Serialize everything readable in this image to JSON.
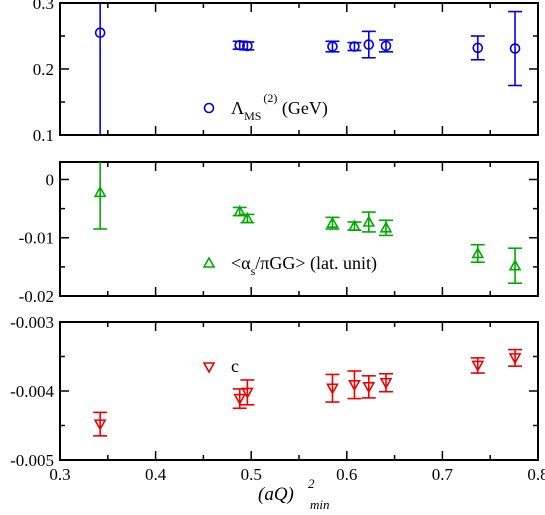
{
  "figure": {
    "xlabel_main": "(aQ)",
    "xlabel_sup": "2",
    "xlabel_sub": "min"
  },
  "chart_data": [
    {
      "type": "scatter",
      "panel": "top",
      "xlim": [
        0.3,
        0.8
      ],
      "ylim": [
        0.1,
        0.3
      ],
      "yticks": [
        0.1,
        0.2,
        0.3
      ],
      "ytick_labels": [
        "0.1",
        "0.2",
        "0.3"
      ],
      "color": "#0000ee",
      "marker": "circle",
      "legend": {
        "main": "Λ",
        "sub": "MS",
        "sup": "(2)",
        "tail": " (GeV)"
      },
      "series": [
        {
          "name": "Λ_MS^(2) (GeV)",
          "points": [
            {
              "x": 0.342,
              "y": 0.255,
              "err": 0.16
            },
            {
              "x": 0.488,
              "y": 0.236,
              "err": 0.006
            },
            {
              "x": 0.496,
              "y": 0.235,
              "err": 0.006
            },
            {
              "x": 0.585,
              "y": 0.234,
              "err": 0.008
            },
            {
              "x": 0.608,
              "y": 0.234,
              "err": 0.006
            },
            {
              "x": 0.623,
              "y": 0.237,
              "err": 0.02
            },
            {
              "x": 0.641,
              "y": 0.235,
              "err": 0.009
            },
            {
              "x": 0.737,
              "y": 0.232,
              "err": 0.018
            },
            {
              "x": 0.776,
              "y": 0.231,
              "err": 0.056
            }
          ]
        }
      ]
    },
    {
      "type": "scatter",
      "panel": "middle",
      "xlim": [
        0.3,
        0.8
      ],
      "ylim": [
        -0.02,
        0.003
      ],
      "yticks": [
        -0.02,
        -0.01,
        0
      ],
      "ytick_labels": [
        "-0.02",
        "-0.01",
        "0"
      ],
      "color": "#00aa00",
      "marker": "triangle-up",
      "legend": {
        "open": "<α",
        "sub": "s",
        "tail": "/πGG> (lat. unit)"
      },
      "series": [
        {
          "name": "<α_s/πGG> (lat. unit)",
          "points": [
            {
              "x": 0.342,
              "y": -0.0022,
              "err": 0.0063
            },
            {
              "x": 0.488,
              "y": -0.0055,
              "err": 0.0007
            },
            {
              "x": 0.496,
              "y": -0.0067,
              "err": 0.0007
            },
            {
              "x": 0.585,
              "y": -0.0075,
              "err": 0.001
            },
            {
              "x": 0.608,
              "y": -0.008,
              "err": 0.0007
            },
            {
              "x": 0.623,
              "y": -0.0073,
              "err": 0.0017
            },
            {
              "x": 0.641,
              "y": -0.0083,
              "err": 0.0013
            },
            {
              "x": 0.737,
              "y": -0.0127,
              "err": 0.0015
            },
            {
              "x": 0.776,
              "y": -0.0148,
              "err": 0.003
            }
          ]
        }
      ]
    },
    {
      "type": "scatter",
      "panel": "bottom",
      "xlim": [
        0.3,
        0.8
      ],
      "ylim": [
        -0.005,
        -0.003
      ],
      "yticks": [
        -0.005,
        -0.004,
        -0.003
      ],
      "ytick_labels": [
        "-0.005",
        "-0.004",
        "-0.003"
      ],
      "xticks": [
        0.3,
        0.4,
        0.5,
        0.6,
        0.7,
        0.8
      ],
      "xtick_labels": [
        "0.3",
        "0.4",
        "0.5",
        "0.6",
        "0.7",
        "0.8"
      ],
      "color": "#ee0000",
      "marker": "triangle-down",
      "legend": {
        "label": "c"
      },
      "series": [
        {
          "name": "c",
          "points": [
            {
              "x": 0.342,
              "y": -0.00448,
              "err": 0.00017
            },
            {
              "x": 0.488,
              "y": -0.00411,
              "err": 0.00014
            },
            {
              "x": 0.496,
              "y": -0.00402,
              "err": 0.00018
            },
            {
              "x": 0.585,
              "y": -0.00396,
              "err": 0.0002
            },
            {
              "x": 0.608,
              "y": -0.00391,
              "err": 0.0002
            },
            {
              "x": 0.623,
              "y": -0.00394,
              "err": 0.00016
            },
            {
              "x": 0.641,
              "y": -0.00388,
              "err": 0.00013
            },
            {
              "x": 0.737,
              "y": -0.00363,
              "err": 0.00011
            },
            {
              "x": 0.776,
              "y": -0.00352,
              "err": 0.00012
            }
          ]
        }
      ]
    }
  ]
}
